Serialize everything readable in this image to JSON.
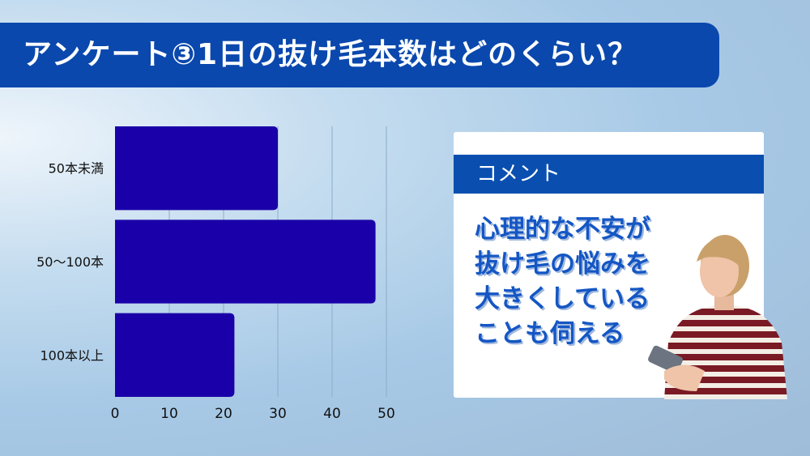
{
  "title": "アンケート③1日の抜け毛本数はどのくらい？",
  "chart_data": {
    "type": "bar",
    "orientation": "horizontal",
    "categories": [
      "50本未満",
      "50〜100本",
      "100本以上"
    ],
    "values": [
      30,
      48,
      22
    ],
    "xlim": [
      0,
      50
    ],
    "xticks": [
      "0",
      "10",
      "20",
      "30",
      "40",
      "50"
    ],
    "grid": true,
    "bar_color": "#1a00a8"
  },
  "comment": {
    "heading": "コメント",
    "lines": [
      "心理的な不安が",
      "抜け毛の悩みを",
      "大きくしている",
      "ことも伺える"
    ]
  }
}
